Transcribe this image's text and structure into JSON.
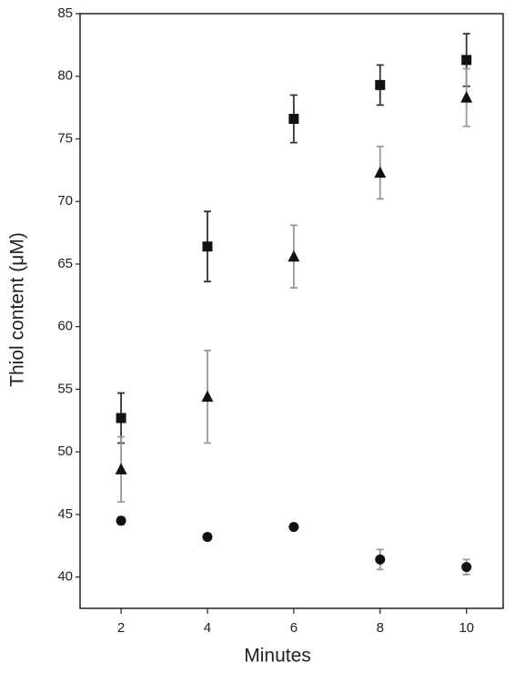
{
  "chart_data": {
    "type": "scatter",
    "xlabel": "Minutes",
    "ylabel": "Thiol content (μM)",
    "x": [
      2,
      4,
      6,
      8,
      10
    ],
    "series": [
      {
        "marker": "square",
        "color": "#111111",
        "error_color": "#333333",
        "values": [
          52.7,
          66.4,
          76.6,
          79.3,
          81.3
        ],
        "errors": [
          2.0,
          2.8,
          1.9,
          1.6,
          2.1
        ]
      },
      {
        "marker": "triangle",
        "color": "#111111",
        "error_color": "#999999",
        "values": [
          48.6,
          54.4,
          65.6,
          72.3,
          78.3
        ],
        "errors": [
          2.6,
          3.7,
          2.5,
          2.1,
          2.3
        ]
      },
      {
        "marker": "circle",
        "color": "#111111",
        "error_color": "#999999",
        "values": [
          44.5,
          43.2,
          44.0,
          41.4,
          40.8
        ],
        "errors": [
          0.3,
          0.2,
          0.1,
          0.8,
          0.6
        ]
      }
    ],
    "xlim": [
      1.05,
      10.85
    ],
    "xticks": [
      2,
      4,
      6,
      8,
      10
    ],
    "ylim": [
      37.5,
      85
    ],
    "yticks": [
      40,
      45,
      50,
      55,
      60,
      65,
      70,
      75,
      80,
      85
    ],
    "grid": false
  }
}
